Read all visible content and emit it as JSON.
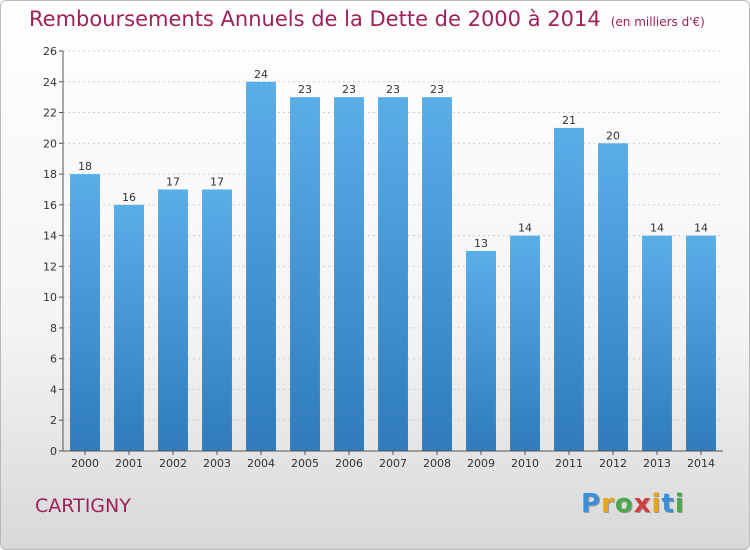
{
  "title": "Remboursements Annuels de la Dette de 2000 à 2014",
  "unit": "(en milliers d'€)",
  "commune": "CARTIGNY",
  "logo": {
    "letters": [
      "P",
      "r",
      "o",
      "x",
      "i",
      "t",
      "i"
    ],
    "colors": [
      "#3a8fd8",
      "#e8a41c",
      "#4aa84a",
      "#d23c3c",
      "#e8a41c",
      "#3a8fd8",
      "#4aa84a"
    ]
  },
  "colors": {
    "bar_top": "#5aaee8",
    "bar_bottom": "#2f7bbd",
    "title": "#a0205a"
  },
  "chart_data": {
    "type": "bar",
    "title": "Remboursements Annuels de la Dette de 2000 à 2014",
    "categories": [
      "2000",
      "2001",
      "2002",
      "2003",
      "2004",
      "2005",
      "2006",
      "2007",
      "2008",
      "2009",
      "2010",
      "2011",
      "2012",
      "2013",
      "2014"
    ],
    "values": [
      18,
      16,
      17,
      17,
      24,
      23,
      23,
      23,
      23,
      13,
      14,
      21,
      20,
      14,
      14
    ],
    "ylim": [
      0,
      26
    ],
    "yticks": [
      0,
      2,
      4,
      6,
      8,
      10,
      12,
      14,
      16,
      18,
      20,
      22,
      24,
      26
    ],
    "grid": "horizontal",
    "xlabel": "",
    "ylabel": ""
  }
}
